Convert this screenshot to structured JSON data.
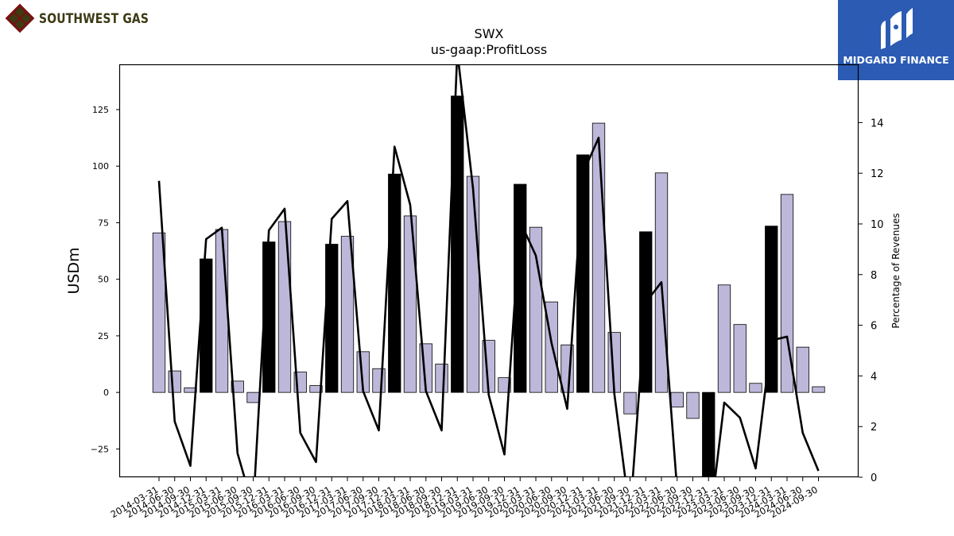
{
  "logos": {
    "left": {
      "name": "SOUTHWEST GAS",
      "icon": "diamond-lattice-icon",
      "colors": [
        "#3d3a14",
        "#7a1010"
      ]
    },
    "right": {
      "name": "MIDGARD FINANCE",
      "icon": "midgard-m-icon",
      "background": "#2b5bb3"
    }
  },
  "chart_data": {
    "type": "bar",
    "title": "SWX",
    "subtitle": "us-gaap:ProfitLoss",
    "ylabel": "USDm",
    "y2label": "Percentage of Revenues",
    "ylim": [
      -37.5,
      145
    ],
    "y2lim": [
      0,
      16.3
    ],
    "yticks": [
      -25,
      0,
      25,
      50,
      75,
      100,
      125
    ],
    "y2ticks": [
      0,
      2,
      4,
      6,
      8,
      10,
      12,
      14
    ],
    "categories": [
      "2014-03-31",
      "2014-06-30",
      "2014-09-30",
      "2014-12-31",
      "2015-03-31",
      "2015-06-30",
      "2015-09-30",
      "2015-12-31",
      "2016-03-31",
      "2016-06-30",
      "2016-09-30",
      "2016-12-31",
      "2017-03-31",
      "2017-06-30",
      "2017-09-30",
      "2017-12-31",
      "2018-03-31",
      "2018-06-30",
      "2018-09-30",
      "2018-12-31",
      "2019-03-31",
      "2019-06-30",
      "2019-09-30",
      "2019-12-31",
      "2020-03-31",
      "2020-06-30",
      "2020-09-30",
      "2020-12-31",
      "2021-03-31",
      "2021-06-30",
      "2021-09-30",
      "2021-12-31",
      "2022-03-31",
      "2022-06-30",
      "2022-09-30",
      "2022-12-31",
      "2023-03-31",
      "2023-06-30",
      "2023-09-30",
      "2023-12-31",
      "2024-03-31",
      "2024-06-30",
      "2024-09-30"
    ],
    "series": [
      {
        "kind": "bar",
        "values": [
          70.5,
          9.5,
          2,
          59,
          72,
          5,
          -4.5,
          66.5,
          75.5,
          9,
          3,
          65.5,
          69,
          18,
          10.5,
          96.5,
          78,
          21.5,
          12.5,
          131,
          95.5,
          23,
          6.5,
          92,
          73,
          40,
          21,
          105,
          119,
          26.5,
          -9.5,
          71,
          97,
          -6.5,
          -11.5,
          -38,
          47.5,
          30,
          4,
          73.5,
          87.5,
          20,
          2.5
        ],
        "highlight": [
          false,
          false,
          false,
          true,
          false,
          false,
          false,
          true,
          false,
          false,
          false,
          true,
          false,
          false,
          false,
          true,
          false,
          false,
          false,
          true,
          false,
          false,
          false,
          true,
          false,
          false,
          false,
          true,
          false,
          false,
          false,
          true,
          false,
          false,
          false,
          true,
          false,
          false,
          false,
          true,
          false,
          false,
          false
        ],
        "fill": "#bdb8d9",
        "highlight_fill": "#000000"
      },
      {
        "kind": "line",
        "axis": "right",
        "values": [
          11.7,
          2.2,
          0.45,
          9.4,
          9.85,
          0.95,
          -1.2,
          9.75,
          10.6,
          1.75,
          0.6,
          10.2,
          10.9,
          3.4,
          1.85,
          13.05,
          10.75,
          3.4,
          1.85,
          16.8,
          11.4,
          3.25,
          0.9,
          10.1,
          8.75,
          5.3,
          2.7,
          12.0,
          13.4,
          3.3,
          -1.5,
          6.9,
          7.7,
          -0.5,
          -0.9,
          -2.2,
          2.95,
          2.35,
          0.35,
          5.4,
          5.55,
          1.75,
          0.25
        ],
        "color": "#000000"
      }
    ],
    "grid": false,
    "legend": "none"
  }
}
